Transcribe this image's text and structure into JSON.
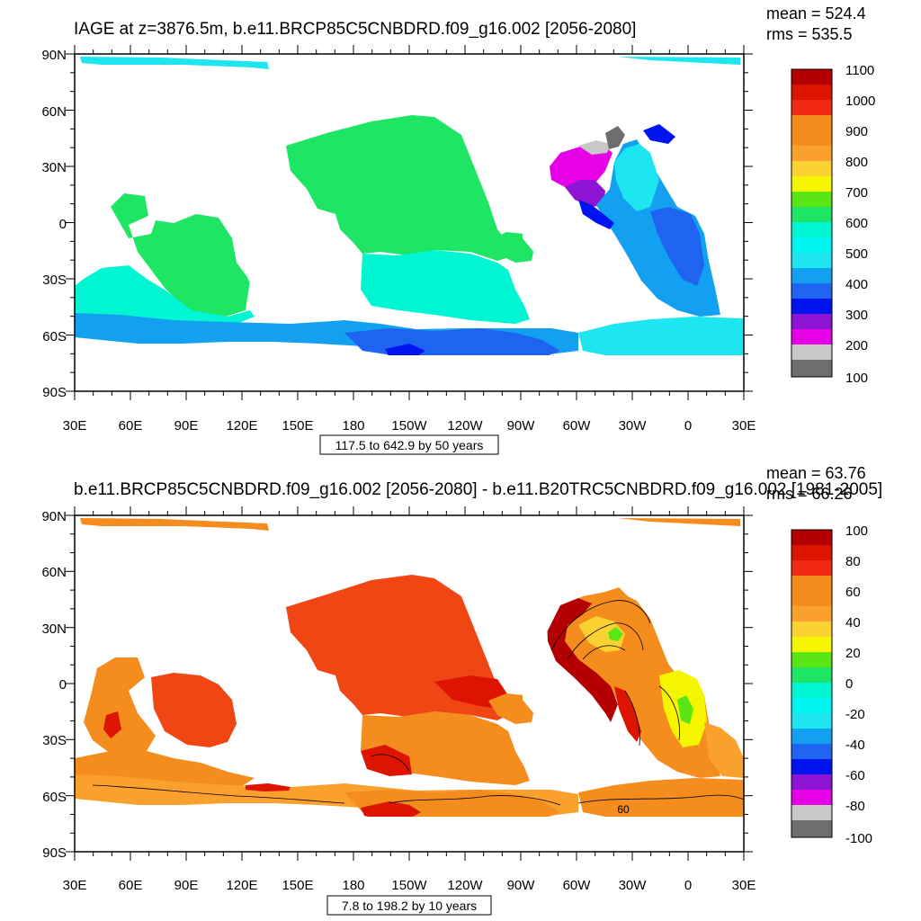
{
  "panels": [
    {
      "title": "IAGE at z=3876.5m, b.e11.BRCP85C5CNBDRD.f09_g16.002 [2056-2080]",
      "mean": "mean = 524.4",
      "rms": "rms = 535.5",
      "range_note": "117.5 to 642.9 by 50 years",
      "colorbar_labels": [
        "1100",
        "1000",
        "900",
        "800",
        "700",
        "600",
        "500",
        "400",
        "300",
        "200",
        "100"
      ]
    },
    {
      "title": "b.e11.BRCP85C5CNBDRD.f09_g16.002 [2056-2080] - b.e11.B20TRC5CNBDRD.f09_g16.002 [1981-2005]",
      "mean": "mean = 63.76",
      "rms": "rms = 66.26",
      "range_note": "7.8 to 198.2 by 10 years",
      "contour_label": "60",
      "colorbar_labels": [
        "100",
        "80",
        "60",
        "40",
        "20",
        "0",
        "-20",
        "-40",
        "-60",
        "-80",
        "-100"
      ]
    }
  ],
  "axes": {
    "lat_labels": [
      "90N",
      "60N",
      "30N",
      "0",
      "30S",
      "60S",
      "90S"
    ],
    "lon_labels": [
      "30E",
      "60E",
      "90E",
      "120E",
      "150E",
      "180",
      "150W",
      "120W",
      "90W",
      "60W",
      "30W",
      "0",
      "30E"
    ]
  },
  "colors": {
    "ncl_rainbow": [
      "#6e6e6e",
      "#c8c8c8",
      "#e600e6",
      "#8c14d2",
      "#0014f0",
      "#1e64f0",
      "#14a0f0",
      "#1ee6f0",
      "#00f5d2",
      "#1ee664",
      "#5ae614",
      "#f5f500",
      "#fad232",
      "#faa02d",
      "#f58c1e",
      "#f04614",
      "#dc1400",
      "#b40000"
    ],
    "top_ocean": {
      "arctic": "#1ee6f0",
      "pacific": "#1ee664",
      "indian": "#1ee664",
      "indian_south": "#00f5d2",
      "south_pacific": "#00f5d2",
      "southern": "#14a0f0",
      "southern_deep": "#1e64f0",
      "southern_light": "#1ee6f0",
      "atl_north_deep": "#e600e6",
      "atl_north_purple": "#8c14d2",
      "atl_north_grey": "#c8c8c8",
      "atl_north_dark": "#6e6e6e",
      "atl_blue": "#14a0f0",
      "atl_cyan": "#1ee6f0",
      "atl_deep": "#0014f0",
      "atl_mid": "#1e64f0"
    },
    "bottom_ocean": {
      "arctic": "#f58c1e",
      "pacific": "#f04614",
      "pacific_dark": "#dc1400",
      "indian": "#f04614",
      "indian_west": "#f58c1e",
      "south_pacific": "#f58c1e",
      "south_pacific_dark": "#dc1400",
      "southern": "#faa02d",
      "southern_mid": "#f58c1e",
      "southern_dark": "#dc1400",
      "atl_north": "#f58c1e",
      "atl_north_dark": "#b40000",
      "atl_north_light": "#fad232",
      "atl_yellow": "#f5f500",
      "atl_green": "#5ae614",
      "atl_band": "#dc1400",
      "atl_orange": "#faa02d"
    }
  }
}
